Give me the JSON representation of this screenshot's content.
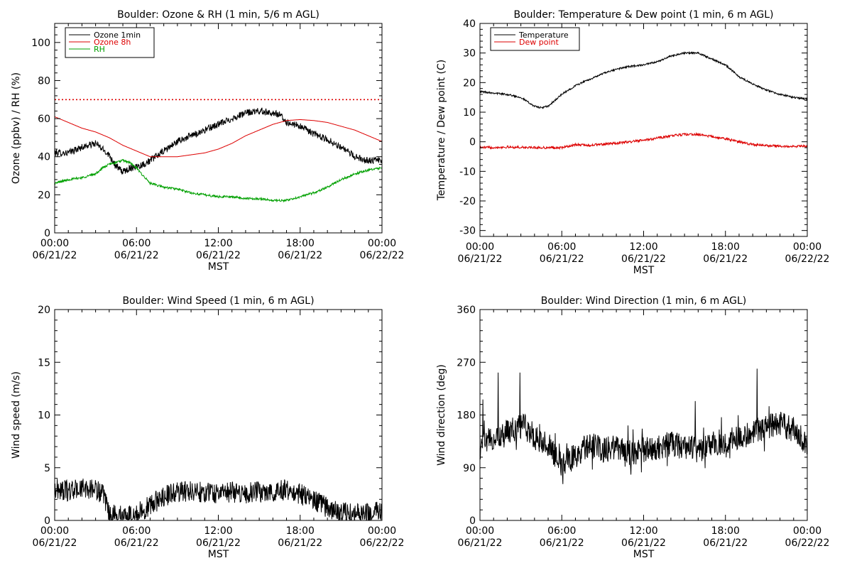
{
  "x_axis": {
    "title": "MST",
    "ticks": [
      {
        "x": 0,
        "time": "00:00",
        "date": "06/21/22"
      },
      {
        "x": 6,
        "time": "06:00",
        "date": "06/21/22"
      },
      {
        "x": 12,
        "time": "12:00",
        "date": "06/21/22"
      },
      {
        "x": 18,
        "time": "18:00",
        "date": "06/21/22"
      },
      {
        "x": 24,
        "time": "00:00",
        "date": "06/22/22"
      }
    ]
  },
  "chart_data": [
    {
      "id": "ozone",
      "type": "line",
      "title": "Boulder: Ozone & RH (1 min, 5/6 m AGL)",
      "xlabel": "MST",
      "ylabel": "Ozone (ppbv) / RH (%)",
      "xlim": [
        0,
        24
      ],
      "ylim": [
        0,
        110
      ],
      "yticks": [
        0,
        20,
        40,
        60,
        80,
        100
      ],
      "legend_position": "top-left",
      "reference_line": {
        "y": 70,
        "color": "#dd0000",
        "style": "dotted"
      },
      "series": [
        {
          "name": "Ozone 1min",
          "color": "#000000",
          "noise": 1.8,
          "x": [
            0,
            1,
            2,
            3,
            4,
            4.5,
            5,
            5.5,
            6,
            6.5,
            7,
            8,
            9,
            10,
            11,
            12,
            13,
            14,
            15,
            16,
            16.5,
            17,
            18,
            19,
            20,
            21,
            22,
            23,
            24
          ],
          "y": [
            42,
            42,
            45,
            47,
            41,
            35,
            32,
            34,
            35,
            36,
            38,
            43,
            48,
            51,
            54,
            57,
            60,
            63,
            64,
            63,
            62,
            58,
            56,
            52,
            49,
            45,
            40,
            38,
            38
          ]
        },
        {
          "name": "Ozone 8h",
          "color": "#dd0000",
          "noise": 0,
          "x": [
            0,
            1,
            2,
            3,
            4,
            5,
            6,
            7,
            8,
            9,
            10,
            11,
            12,
            13,
            14,
            15,
            16,
            17,
            18,
            19,
            20,
            21,
            22,
            23,
            24
          ],
          "y": [
            61,
            58,
            55,
            53,
            50,
            46,
            43,
            40,
            40,
            40,
            41,
            42,
            44,
            47,
            51,
            54,
            57,
            59,
            59.5,
            59,
            58,
            56,
            54,
            51,
            48
          ]
        },
        {
          "name": "RH",
          "color": "#00a000",
          "noise": 0.6,
          "x": [
            0,
            1,
            2,
            3,
            3.5,
            4,
            4.5,
            5,
            5.5,
            6,
            6.5,
            7,
            8,
            9,
            10,
            11,
            12,
            13,
            14,
            15,
            16,
            17,
            18,
            19,
            20,
            21,
            22,
            23,
            24
          ],
          "y": [
            26,
            28,
            29,
            31,
            34,
            36,
            37,
            38,
            37,
            34,
            30,
            26,
            24,
            23,
            21,
            20,
            19,
            19,
            18,
            18,
            17,
            17,
            19,
            21,
            24,
            28,
            31,
            33,
            34
          ]
        }
      ]
    },
    {
      "id": "temp",
      "type": "line",
      "title": "Boulder: Temperature & Dew point (1 min, 6 m AGL)",
      "xlabel": "MST",
      "ylabel": "Temperature / Dew point (C)",
      "xlim": [
        0,
        24
      ],
      "ylim": [
        -32,
        40
      ],
      "yticks": [
        -30,
        -20,
        -10,
        0,
        10,
        20,
        30,
        40
      ],
      "legend_position": "top-left",
      "series": [
        {
          "name": "Temperature",
          "color": "#000000",
          "noise": 0.3,
          "x": [
            0,
            1,
            2,
            3,
            4,
            4.5,
            5,
            5.5,
            6,
            7,
            8,
            9,
            10,
            11,
            12,
            13,
            14,
            15,
            16,
            17,
            18,
            19,
            20,
            21,
            22,
            23,
            24
          ],
          "y": [
            17,
            16.5,
            16,
            15,
            12,
            11.5,
            12,
            14,
            16,
            19,
            21,
            23,
            24.5,
            25.5,
            26,
            27,
            29,
            30,
            30,
            28,
            26,
            22,
            19.5,
            17.5,
            16,
            15,
            14.5
          ]
        },
        {
          "name": "Dew point",
          "color": "#dd0000",
          "noise": 0.4,
          "x": [
            0,
            2,
            4,
            6,
            7,
            8,
            10,
            12,
            14,
            15,
            16,
            18,
            20,
            22,
            24
          ],
          "y": [
            -2,
            -1.8,
            -2,
            -2,
            -1,
            -1.2,
            -0.5,
            0.5,
            2,
            2.5,
            2.5,
            1,
            -1,
            -1.5,
            -1.5
          ]
        }
      ]
    },
    {
      "id": "wspd",
      "type": "line",
      "title": "Boulder: Wind Speed (1 min, 6 m AGL)",
      "xlabel": "MST",
      "ylabel": "Wind speed (m/s)",
      "xlim": [
        0,
        24
      ],
      "ylim": [
        0,
        20
      ],
      "yticks": [
        0,
        5,
        10,
        15,
        20
      ],
      "series": [
        {
          "name": "",
          "color": "#000000",
          "noise": 1.0,
          "x": [
            0,
            1,
            2,
            3,
            3.5,
            4,
            5,
            6,
            7,
            8,
            9,
            10,
            11,
            12,
            13,
            14,
            15,
            16,
            17,
            18,
            19,
            20,
            21,
            22,
            23,
            24
          ],
          "y": [
            3,
            2.8,
            3,
            3,
            2.5,
            0.6,
            0.4,
            0.6,
            1.4,
            2.3,
            2.7,
            2.8,
            2.7,
            2.6,
            2.7,
            2.6,
            2.7,
            2.8,
            2.9,
            2.5,
            2.0,
            1.2,
            0.8,
            0.6,
            0.7,
            0.8
          ]
        }
      ]
    },
    {
      "id": "wdir",
      "type": "line",
      "title": "Boulder: Wind Direction (1 min, 6 m AGL)",
      "xlabel": "MST",
      "ylabel": "Wind direction (deg)",
      "xlim": [
        0,
        24
      ],
      "ylim": [
        0,
        360
      ],
      "yticks": [
        0,
        90,
        180,
        270,
        360
      ],
      "series": [
        {
          "name": "",
          "color": "#000000",
          "noise": 22,
          "x": [
            0,
            1,
            2,
            3,
            3.5,
            4,
            5,
            6,
            7,
            8,
            9,
            10,
            11,
            12,
            13,
            14,
            15,
            16,
            17,
            18,
            19,
            20,
            21,
            22,
            23,
            24
          ],
          "y": [
            140,
            135,
            150,
            160,
            160,
            140,
            130,
            95,
            110,
            130,
            120,
            125,
            115,
            120,
            125,
            130,
            125,
            120,
            130,
            135,
            140,
            150,
            160,
            165,
            155,
            130
          ]
        }
      ]
    }
  ]
}
